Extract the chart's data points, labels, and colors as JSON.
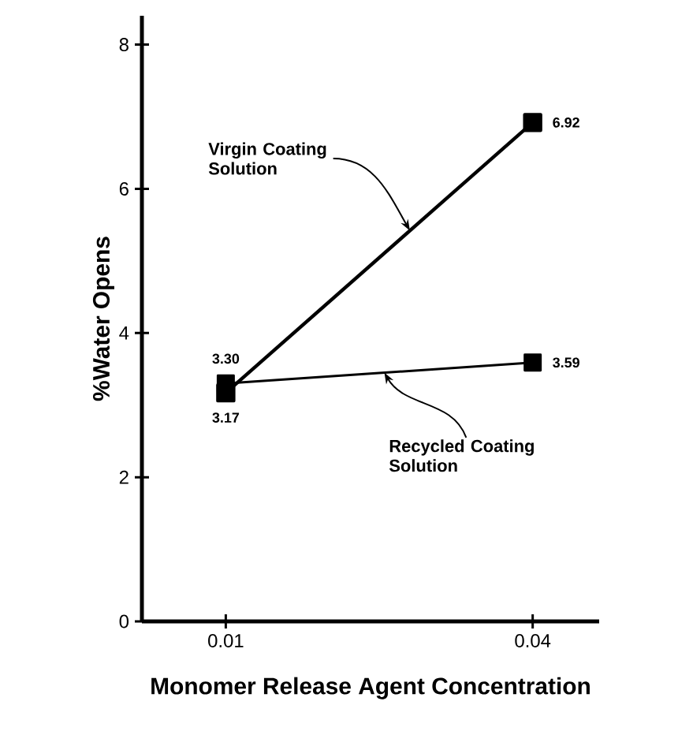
{
  "chart_data": {
    "type": "line",
    "xlabel": "Monomer Release Agent Concentration",
    "ylabel": "%Water Opens",
    "x": [
      0.01,
      0.04
    ],
    "series": [
      {
        "color": "#000000",
        "values": [
          3.17,
          6.92
        ],
        "value_labels": [
          "3.17",
          "6.92"
        ]
      },
      {
        "color": "#000000",
        "values": [
          3.3,
          3.59
        ],
        "value_labels": [
          "3.30",
          "3.59"
        ]
      }
    ],
    "annotations": [
      {
        "text": "Virgin Coating Solution",
        "x": 0.028,
        "y": 5.42
      },
      {
        "text": "Recycled Coating Solution",
        "x": 0.0255,
        "y": 3.45
      }
    ],
    "xlim": [
      0.0018,
      0.0465
    ],
    "ylim": [
      0,
      8.4
    ],
    "xticks": [
      0.01,
      0.04
    ],
    "yticks": [
      0,
      2,
      4,
      6,
      8
    ],
    "marker": "square",
    "line_style": "solid"
  }
}
